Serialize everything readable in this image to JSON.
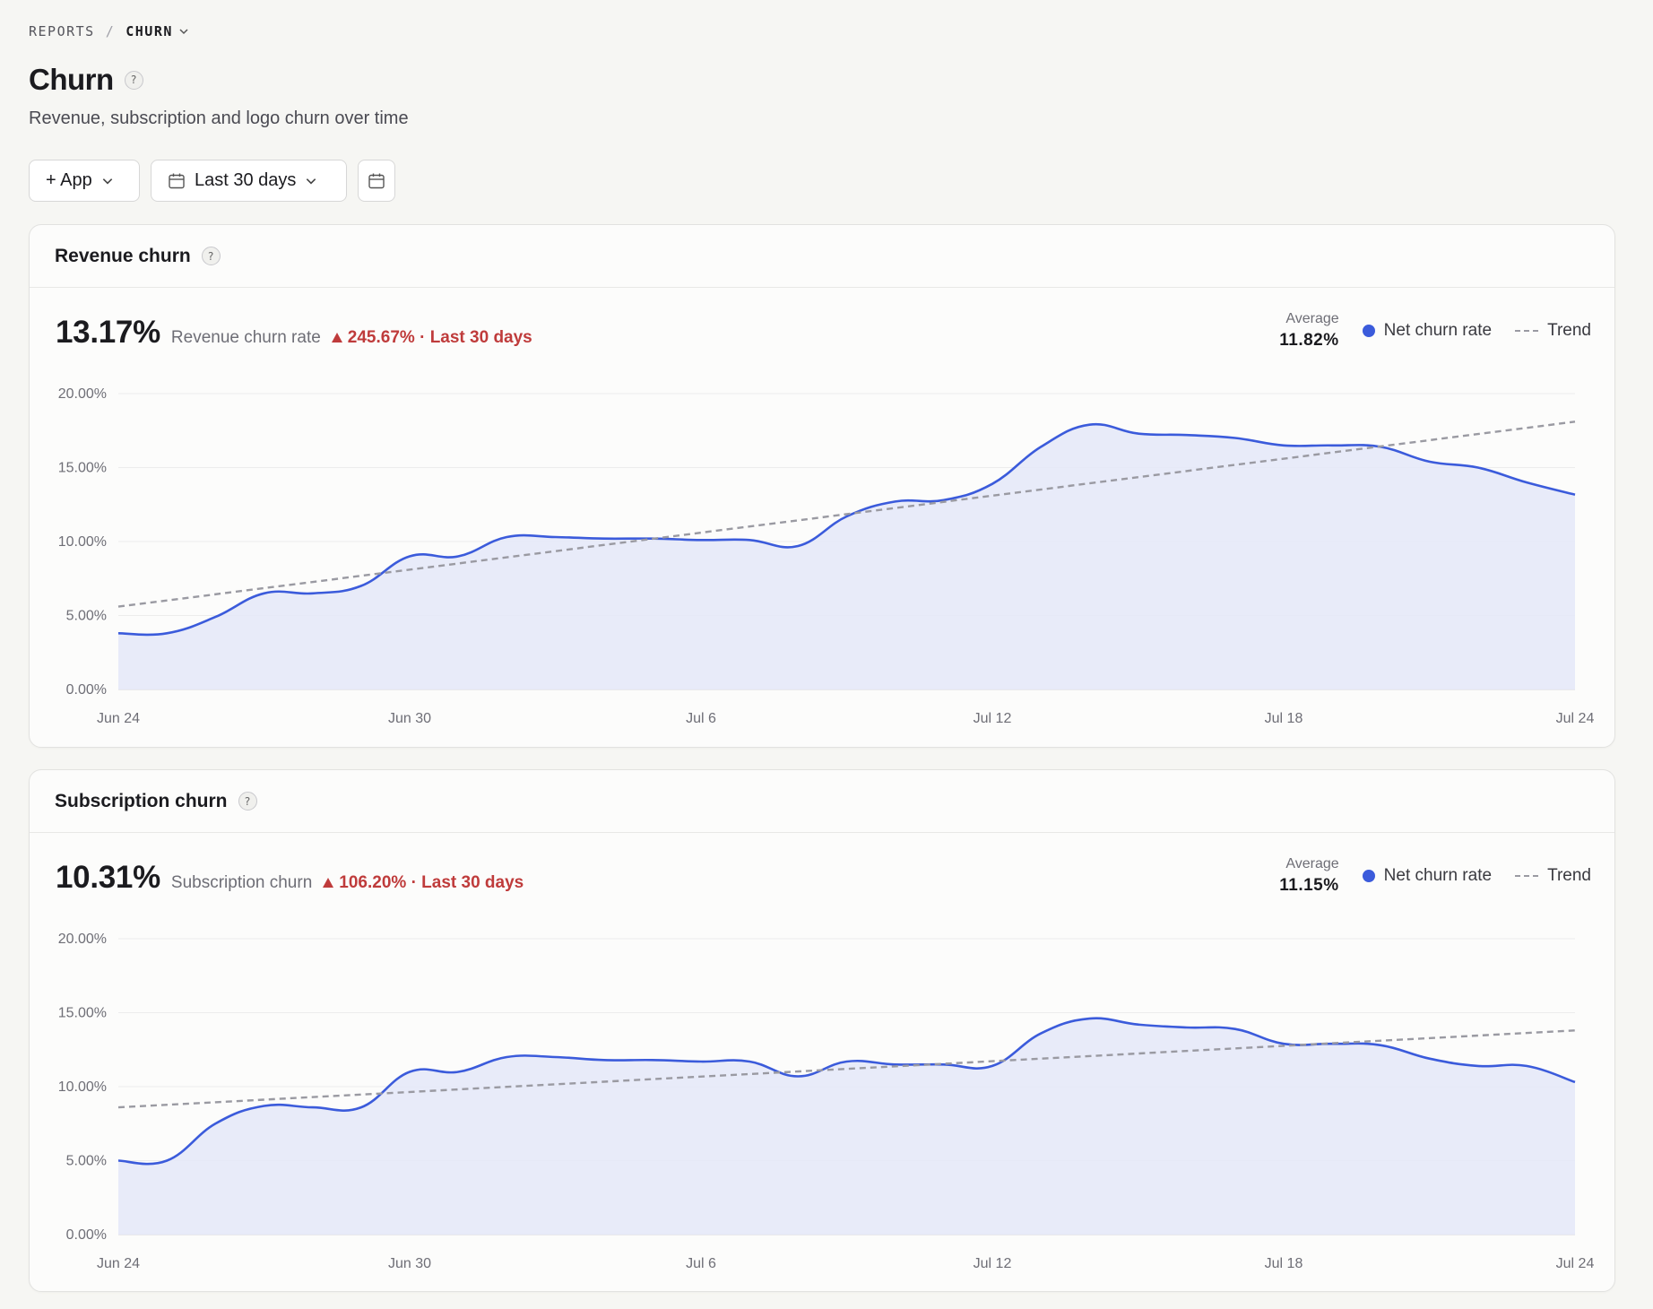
{
  "breadcrumb": {
    "parent": "REPORTS",
    "separator": "/",
    "current": "CHURN"
  },
  "page": {
    "title": "Churn",
    "help": "?",
    "subtitle": "Revenue, subscription and logo churn over time"
  },
  "toolbar": {
    "app_filter_label": "+ App",
    "date_range_label": "Last 30 days"
  },
  "colors": {
    "series": "#3b5bdb",
    "area": "#e6e9f8",
    "trend": "#9a9aa2",
    "negative": "#bf3b3b"
  },
  "cards": [
    {
      "title": "Revenue churn",
      "help": "?",
      "value": "13.17%",
      "value_label": "Revenue churn rate",
      "change": "245.67% · Last 30 days",
      "average_caption": "Average",
      "average_value": "11.82%",
      "legend_series": "Net churn rate",
      "legend_trend": "Trend"
    },
    {
      "title": "Subscription churn",
      "help": "?",
      "value": "10.31%",
      "value_label": "Subscription churn",
      "change": "106.20% · Last 30 days",
      "average_caption": "Average",
      "average_value": "11.15%",
      "legend_series": "Net churn rate",
      "legend_trend": "Trend"
    }
  ],
  "chart_data": [
    {
      "type": "area",
      "x": [
        "Jun 24",
        "Jun 25",
        "Jun 26",
        "Jun 27",
        "Jun 28",
        "Jun 29",
        "Jun 30",
        "Jul 1",
        "Jul 2",
        "Jul 3",
        "Jul 4",
        "Jul 5",
        "Jul 6",
        "Jul 7",
        "Jul 8",
        "Jul 9",
        "Jul 10",
        "Jul 11",
        "Jul 12",
        "Jul 13",
        "Jul 14",
        "Jul 15",
        "Jul 16",
        "Jul 17",
        "Jul 18",
        "Jul 19",
        "Jul 20",
        "Jul 21",
        "Jul 22",
        "Jul 23",
        "Jul 24"
      ],
      "series": [
        {
          "name": "Net churn rate",
          "values": [
            3.8,
            3.8,
            4.9,
            6.5,
            6.5,
            7.0,
            9.0,
            9.0,
            10.3,
            10.3,
            10.2,
            10.2,
            10.1,
            10.1,
            9.7,
            11.7,
            12.7,
            12.8,
            13.9,
            16.4,
            17.9,
            17.3,
            17.2,
            17.0,
            16.5,
            16.5,
            16.4,
            15.4,
            15.0,
            14.0,
            13.17
          ]
        }
      ],
      "trend": [
        5.6,
        18.1
      ],
      "ylim": [
        0,
        20
      ],
      "yticks": [
        "0.00%",
        "5.00%",
        "10.00%",
        "15.00%",
        "20.00%"
      ],
      "xticks": [
        "Jun 24",
        "Jun 30",
        "Jul 6",
        "Jul 12",
        "Jul 18",
        "Jul 24"
      ]
    },
    {
      "type": "area",
      "x": [
        "Jun 24",
        "Jun 25",
        "Jun 26",
        "Jun 27",
        "Jun 28",
        "Jun 29",
        "Jun 30",
        "Jul 1",
        "Jul 2",
        "Jul 3",
        "Jul 4",
        "Jul 5",
        "Jul 6",
        "Jul 7",
        "Jul 8",
        "Jul 9",
        "Jul 10",
        "Jul 11",
        "Jul 12",
        "Jul 13",
        "Jul 14",
        "Jul 15",
        "Jul 16",
        "Jul 17",
        "Jul 18",
        "Jul 19",
        "Jul 20",
        "Jul 21",
        "Jul 22",
        "Jul 23",
        "Jul 24"
      ],
      "series": [
        {
          "name": "Net churn rate",
          "values": [
            5.0,
            5.0,
            7.5,
            8.7,
            8.6,
            8.6,
            11.0,
            11.0,
            12.0,
            12.0,
            11.8,
            11.8,
            11.7,
            11.7,
            10.7,
            11.7,
            11.5,
            11.5,
            11.4,
            13.6,
            14.6,
            14.2,
            14.0,
            13.9,
            12.9,
            12.9,
            12.8,
            11.9,
            11.4,
            11.4,
            10.31
          ]
        }
      ],
      "trend": [
        8.6,
        13.8
      ],
      "ylim": [
        0,
        20
      ],
      "yticks": [
        "0.00%",
        "5.00%",
        "10.00%",
        "15.00%",
        "20.00%"
      ],
      "xticks": [
        "Jun 24",
        "Jun 30",
        "Jul 6",
        "Jul 12",
        "Jul 18",
        "Jul 24"
      ]
    }
  ]
}
